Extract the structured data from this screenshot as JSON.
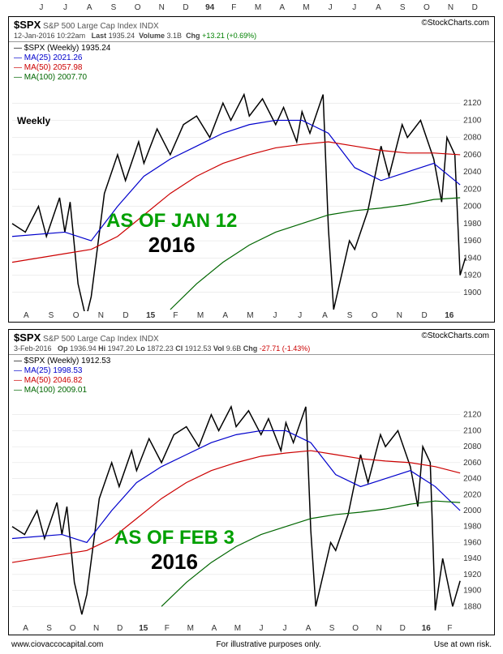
{
  "top_axis_ticks": [
    "J",
    "J",
    "A",
    "S",
    "O",
    "N",
    "D",
    "94",
    "F",
    "M",
    "A",
    "M",
    "J",
    "J",
    "A",
    "S",
    "O",
    "N",
    "D"
  ],
  "chart1": {
    "symbol": "$SPX",
    "desc": "S&P 500 Large Cap Index INDX",
    "credit": "©StockCharts.com",
    "date_line": "12-Jan-2016 10:22am",
    "last_label": "Last",
    "last": "1935.24",
    "vol_label": "Volume",
    "vol": "3.1B",
    "chg_label": "Chg",
    "chg": "+13.21 (+0.69%)",
    "chg_color": "#008000",
    "legend": [
      {
        "text": "$SPX (Weekly) 1935.24",
        "color": "#000000"
      },
      {
        "text": "MA(25) 2021.26",
        "color": "#0000cc"
      },
      {
        "text": "MA(50) 2057.98",
        "color": "#cc0000"
      },
      {
        "text": "MA(100) 2007.70",
        "color": "#006600"
      }
    ],
    "weekly_label": "Weekly",
    "overlay_asof": "AS OF JAN 12",
    "overlay_year": "2016",
    "ylim": [
      1880,
      2140
    ],
    "yticks": [
      1900,
      1920,
      1940,
      1960,
      1980,
      2000,
      2020,
      2040,
      2060,
      2080,
      2100,
      2120
    ],
    "xticks": [
      "A",
      "S",
      "O",
      "N",
      "D",
      "15",
      "F",
      "M",
      "A",
      "M",
      "J",
      "J",
      "A",
      "S",
      "O",
      "N",
      "D",
      "16"
    ],
    "series": {
      "price": {
        "color": "#000000",
        "width": 1.5,
        "data": [
          [
            0,
            1980
          ],
          [
            0.5,
            1970
          ],
          [
            1,
            2000
          ],
          [
            1.3,
            1965
          ],
          [
            1.8,
            2010
          ],
          [
            2,
            1970
          ],
          [
            2.2,
            2005
          ],
          [
            2.5,
            1910
          ],
          [
            2.8,
            1870
          ],
          [
            3,
            1895
          ],
          [
            3.5,
            2015
          ],
          [
            4,
            2060
          ],
          [
            4.3,
            2030
          ],
          [
            4.8,
            2075
          ],
          [
            5,
            2050
          ],
          [
            5.5,
            2090
          ],
          [
            6,
            2060
          ],
          [
            6.5,
            2095
          ],
          [
            7,
            2105
          ],
          [
            7.5,
            2080
          ],
          [
            8,
            2120
          ],
          [
            8.3,
            2100
          ],
          [
            8.8,
            2130
          ],
          [
            9,
            2105
          ],
          [
            9.5,
            2125
          ],
          [
            10,
            2095
          ],
          [
            10.3,
            2115
          ],
          [
            10.8,
            2075
          ],
          [
            11,
            2110
          ],
          [
            11.3,
            2085
          ],
          [
            11.8,
            2130
          ],
          [
            12,
            1975
          ],
          [
            12.2,
            1880
          ],
          [
            12.5,
            1920
          ],
          [
            12.8,
            1960
          ],
          [
            13,
            1950
          ],
          [
            13.5,
            1995
          ],
          [
            14,
            2070
          ],
          [
            14.3,
            2035
          ],
          [
            14.8,
            2095
          ],
          [
            15,
            2080
          ],
          [
            15.5,
            2100
          ],
          [
            16,
            2055
          ],
          [
            16.3,
            2005
          ],
          [
            16.5,
            2080
          ],
          [
            16.8,
            2060
          ],
          [
            17,
            1920
          ],
          [
            17.2,
            1940
          ]
        ]
      },
      "ma25": {
        "color": "#0000cc",
        "width": 1.2,
        "data": [
          [
            0,
            1965
          ],
          [
            2,
            1970
          ],
          [
            3,
            1960
          ],
          [
            4,
            2000
          ],
          [
            5,
            2035
          ],
          [
            6,
            2055
          ],
          [
            7,
            2070
          ],
          [
            8,
            2085
          ],
          [
            9,
            2095
          ],
          [
            10,
            2100
          ],
          [
            11,
            2100
          ],
          [
            12,
            2085
          ],
          [
            13,
            2045
          ],
          [
            14,
            2030
          ],
          [
            15,
            2040
          ],
          [
            16,
            2050
          ],
          [
            17,
            2025
          ]
        ]
      },
      "ma50": {
        "color": "#cc0000",
        "width": 1.2,
        "data": [
          [
            0,
            1935
          ],
          [
            2,
            1945
          ],
          [
            3,
            1950
          ],
          [
            4,
            1965
          ],
          [
            5,
            1990
          ],
          [
            6,
            2015
          ],
          [
            7,
            2035
          ],
          [
            8,
            2050
          ],
          [
            9,
            2060
          ],
          [
            10,
            2068
          ],
          [
            11,
            2072
          ],
          [
            12,
            2075
          ],
          [
            13,
            2070
          ],
          [
            14,
            2065
          ],
          [
            15,
            2062
          ],
          [
            16,
            2062
          ],
          [
            17,
            2060
          ]
        ]
      },
      "ma100": {
        "color": "#006600",
        "width": 1.2,
        "data": [
          [
            6,
            1880
          ],
          [
            7,
            1910
          ],
          [
            8,
            1935
          ],
          [
            9,
            1955
          ],
          [
            10,
            1970
          ],
          [
            11,
            1980
          ],
          [
            12,
            1990
          ],
          [
            13,
            1995
          ],
          [
            14,
            1998
          ],
          [
            15,
            2002
          ],
          [
            16,
            2008
          ],
          [
            17,
            2010
          ]
        ]
      }
    }
  },
  "chart2": {
    "symbol": "$SPX",
    "desc": "S&P 500 Large Cap Index INDX",
    "credit": "©StockCharts.com",
    "date_line": "3-Feb-2016",
    "op_label": "Op",
    "op": "1936.94",
    "hi_label": "Hi",
    "hi": "1947.20",
    "lo_label": "Lo",
    "lo": "1872.23",
    "cl_label": "Cl",
    "cl": "1912.53",
    "vol_label": "Vol",
    "vol": "9.6B",
    "chg_label": "Chg",
    "chg": "-27.71 (-1.43%)",
    "chg_color": "#cc0000",
    "legend": [
      {
        "text": "$SPX (Weekly) 1912.53",
        "color": "#000000"
      },
      {
        "text": "MA(25) 1998.53",
        "color": "#0000cc"
      },
      {
        "text": "MA(50) 2046.82",
        "color": "#cc0000"
      },
      {
        "text": "MA(100) 2009.01",
        "color": "#006600"
      }
    ],
    "overlay_asof": "AS OF FEB 3",
    "overlay_year": "2016",
    "ylim": [
      1860,
      2140
    ],
    "yticks": [
      1880,
      1900,
      1920,
      1940,
      1960,
      1980,
      2000,
      2020,
      2040,
      2060,
      2080,
      2100,
      2120
    ],
    "xticks": [
      "A",
      "S",
      "O",
      "N",
      "D",
      "15",
      "F",
      "M",
      "A",
      "M",
      "J",
      "J",
      "A",
      "S",
      "O",
      "N",
      "D",
      "16",
      "F"
    ],
    "series": {
      "price": {
        "color": "#000000",
        "width": 1.5,
        "data": [
          [
            0,
            1980
          ],
          [
            0.5,
            1970
          ],
          [
            1,
            2000
          ],
          [
            1.3,
            1965
          ],
          [
            1.8,
            2010
          ],
          [
            2,
            1970
          ],
          [
            2.2,
            2005
          ],
          [
            2.5,
            1910
          ],
          [
            2.8,
            1870
          ],
          [
            3,
            1895
          ],
          [
            3.5,
            2015
          ],
          [
            4,
            2060
          ],
          [
            4.3,
            2030
          ],
          [
            4.8,
            2075
          ],
          [
            5,
            2050
          ],
          [
            5.5,
            2090
          ],
          [
            6,
            2060
          ],
          [
            6.5,
            2095
          ],
          [
            7,
            2105
          ],
          [
            7.5,
            2080
          ],
          [
            8,
            2120
          ],
          [
            8.3,
            2100
          ],
          [
            8.8,
            2130
          ],
          [
            9,
            2105
          ],
          [
            9.5,
            2125
          ],
          [
            10,
            2095
          ],
          [
            10.3,
            2115
          ],
          [
            10.8,
            2075
          ],
          [
            11,
            2110
          ],
          [
            11.3,
            2085
          ],
          [
            11.8,
            2130
          ],
          [
            12,
            1975
          ],
          [
            12.2,
            1880
          ],
          [
            12.5,
            1920
          ],
          [
            12.8,
            1960
          ],
          [
            13,
            1950
          ],
          [
            13.5,
            1995
          ],
          [
            14,
            2070
          ],
          [
            14.3,
            2035
          ],
          [
            14.8,
            2095
          ],
          [
            15,
            2080
          ],
          [
            15.5,
            2100
          ],
          [
            16,
            2055
          ],
          [
            16.3,
            2005
          ],
          [
            16.5,
            2080
          ],
          [
            16.8,
            2060
          ],
          [
            17,
            1875
          ],
          [
            17.3,
            1940
          ],
          [
            17.7,
            1880
          ],
          [
            18,
            1912
          ]
        ]
      },
      "ma25": {
        "color": "#0000cc",
        "width": 1.2,
        "data": [
          [
            0,
            1965
          ],
          [
            2,
            1970
          ],
          [
            3,
            1960
          ],
          [
            4,
            2000
          ],
          [
            5,
            2035
          ],
          [
            6,
            2055
          ],
          [
            7,
            2070
          ],
          [
            8,
            2085
          ],
          [
            9,
            2095
          ],
          [
            10,
            2100
          ],
          [
            11,
            2100
          ],
          [
            12,
            2085
          ],
          [
            13,
            2045
          ],
          [
            14,
            2030
          ],
          [
            15,
            2040
          ],
          [
            16,
            2050
          ],
          [
            17,
            2030
          ],
          [
            18,
            2000
          ]
        ]
      },
      "ma50": {
        "color": "#cc0000",
        "width": 1.2,
        "data": [
          [
            0,
            1935
          ],
          [
            2,
            1945
          ],
          [
            3,
            1950
          ],
          [
            4,
            1965
          ],
          [
            5,
            1990
          ],
          [
            6,
            2015
          ],
          [
            7,
            2035
          ],
          [
            8,
            2050
          ],
          [
            9,
            2060
          ],
          [
            10,
            2068
          ],
          [
            11,
            2072
          ],
          [
            12,
            2075
          ],
          [
            13,
            2070
          ],
          [
            14,
            2065
          ],
          [
            15,
            2062
          ],
          [
            16,
            2060
          ],
          [
            17,
            2055
          ],
          [
            18,
            2047
          ]
        ]
      },
      "ma100": {
        "color": "#006600",
        "width": 1.2,
        "data": [
          [
            6,
            1880
          ],
          [
            7,
            1910
          ],
          [
            8,
            1935
          ],
          [
            9,
            1955
          ],
          [
            10,
            1970
          ],
          [
            11,
            1980
          ],
          [
            12,
            1990
          ],
          [
            13,
            1995
          ],
          [
            14,
            1998
          ],
          [
            15,
            2002
          ],
          [
            16,
            2008
          ],
          [
            17,
            2012
          ],
          [
            18,
            2010
          ]
        ]
      }
    }
  },
  "footer": {
    "left": "www.ciovaccocapital.com",
    "mid": "For illustrative purposes only.",
    "right": "Use at own risk."
  }
}
